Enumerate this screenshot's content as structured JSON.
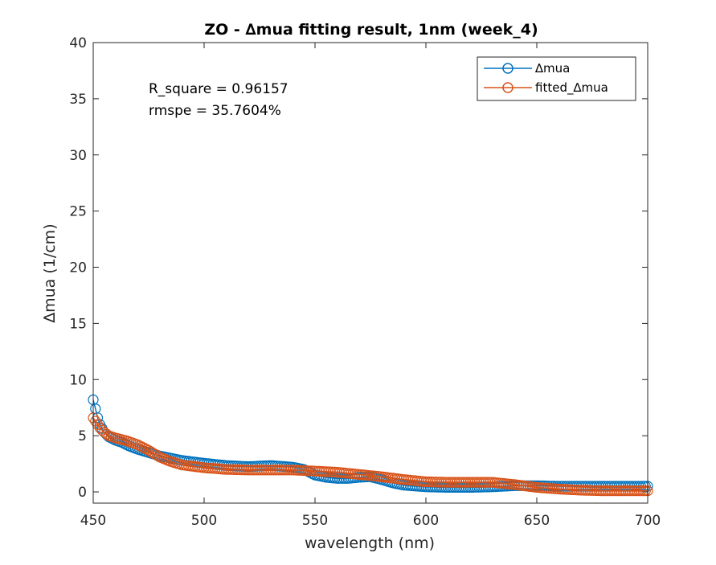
{
  "chart_data": {
    "type": "line",
    "title": "ZO - ∆mua fitting result, 1nm (week_4)",
    "xlabel": "wavelength (nm)",
    "ylabel": "∆mua (1/cm)",
    "xlim": [
      450,
      700
    ],
    "ylim": [
      -1,
      40
    ],
    "x_ticks": [
      450,
      500,
      550,
      600,
      650,
      700
    ],
    "y_ticks": [
      0,
      5,
      10,
      15,
      20,
      25,
      30,
      35,
      40
    ],
    "grid": false,
    "legend_position": "top-right",
    "annotations": [
      "R_square = 0.96157",
      "rmspe = 35.7604%"
    ],
    "x": {
      "start": 450,
      "end": 700,
      "step": 1
    },
    "series": [
      {
        "name": "∆mua",
        "color": "#0072BD",
        "marker": "circle",
        "keypoints": [
          [
            450,
            8.2
          ],
          [
            451,
            7.4
          ],
          [
            452,
            6.6
          ],
          [
            453,
            6.0
          ],
          [
            455,
            5.3
          ],
          [
            457,
            4.9
          ],
          [
            460,
            4.6
          ],
          [
            463,
            4.4
          ],
          [
            466,
            4.1
          ],
          [
            470,
            3.8
          ],
          [
            475,
            3.5
          ],
          [
            480,
            3.2
          ],
          [
            485,
            3.0
          ],
          [
            490,
            2.8
          ],
          [
            500,
            2.55
          ],
          [
            510,
            2.35
          ],
          [
            520,
            2.25
          ],
          [
            530,
            2.35
          ],
          [
            540,
            2.2
          ],
          [
            545,
            2.0
          ],
          [
            550,
            1.5
          ],
          [
            555,
            1.3
          ],
          [
            560,
            1.2
          ],
          [
            565,
            1.2
          ],
          [
            570,
            1.3
          ],
          [
            575,
            1.35
          ],
          [
            580,
            1.1
          ],
          [
            585,
            0.8
          ],
          [
            590,
            0.6
          ],
          [
            600,
            0.45
          ],
          [
            610,
            0.4
          ],
          [
            620,
            0.4
          ],
          [
            630,
            0.45
          ],
          [
            640,
            0.55
          ],
          [
            650,
            0.55
          ],
          [
            660,
            0.5
          ],
          [
            670,
            0.5
          ],
          [
            680,
            0.5
          ],
          [
            690,
            0.5
          ],
          [
            700,
            0.5
          ]
        ]
      },
      {
        "name": "fitted_∆mua",
        "color": "#D95319",
        "marker": "circle",
        "keypoints": [
          [
            450,
            6.6
          ],
          [
            451,
            6.3
          ],
          [
            452,
            6.0
          ],
          [
            453,
            5.7
          ],
          [
            455,
            5.3
          ],
          [
            457,
            5.0
          ],
          [
            460,
            4.8
          ],
          [
            465,
            4.55
          ],
          [
            470,
            4.2
          ],
          [
            475,
            3.7
          ],
          [
            480,
            3.1
          ],
          [
            485,
            2.7
          ],
          [
            490,
            2.4
          ],
          [
            500,
            2.15
          ],
          [
            510,
            2.0
          ],
          [
            520,
            1.95
          ],
          [
            530,
            1.95
          ],
          [
            540,
            1.95
          ],
          [
            550,
            1.85
          ],
          [
            560,
            1.75
          ],
          [
            570,
            1.55
          ],
          [
            580,
            1.35
          ],
          [
            590,
            1.1
          ],
          [
            600,
            0.9
          ],
          [
            610,
            0.85
          ],
          [
            620,
            0.85
          ],
          [
            630,
            0.85
          ],
          [
            640,
            0.65
          ],
          [
            650,
            0.4
          ],
          [
            660,
            0.25
          ],
          [
            670,
            0.15
          ],
          [
            680,
            0.1
          ],
          [
            690,
            0.1
          ],
          [
            700,
            0.1
          ]
        ]
      }
    ]
  }
}
